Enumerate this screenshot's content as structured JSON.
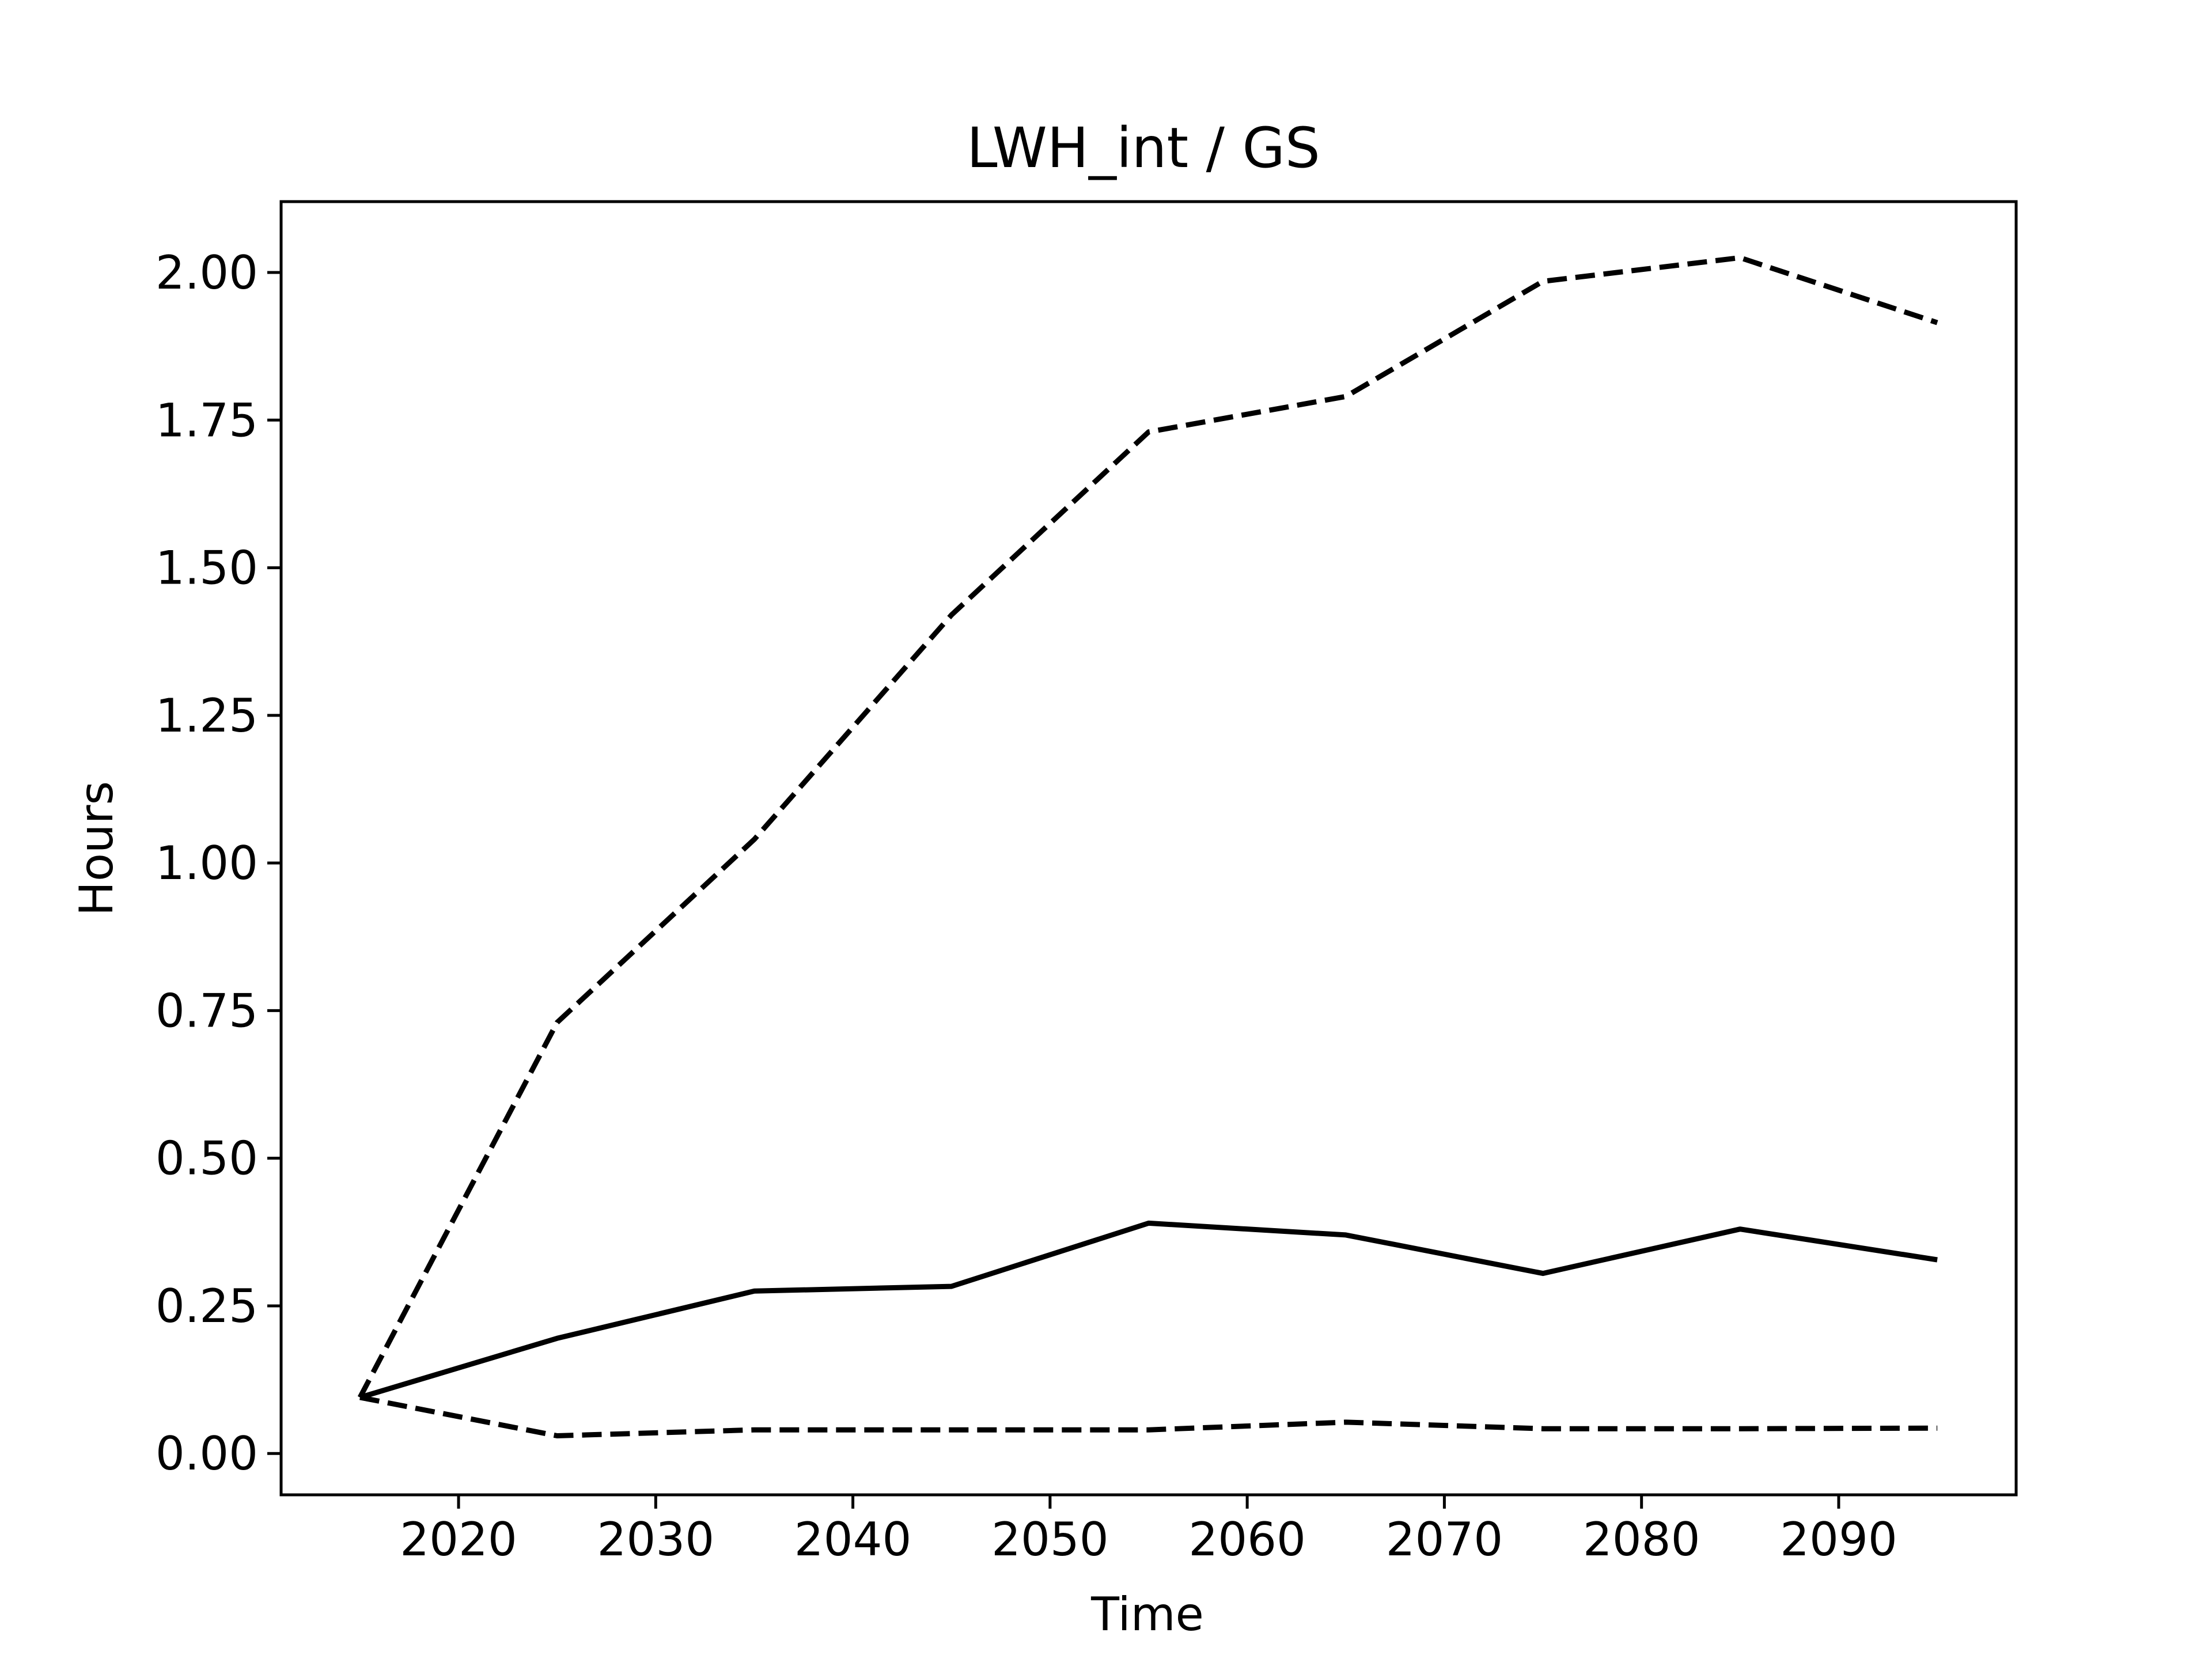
{
  "chart_data": {
    "type": "line",
    "title": "LWH_int / GS",
    "xlabel": "Time",
    "ylabel": "Hours",
    "xlim": [
      2011,
      2099
    ],
    "ylim": [
      -0.07,
      2.12
    ],
    "xticks": [
      2020,
      2030,
      2040,
      2050,
      2060,
      2070,
      2080,
      2090
    ],
    "yticks": [
      0.0,
      0.25,
      0.5,
      0.75,
      1.0,
      1.25,
      1.5,
      1.75,
      2.0
    ],
    "ytick_labels": [
      "0.00",
      "0.25",
      "0.50",
      "0.75",
      "1.00",
      "1.25",
      "1.50",
      "1.75",
      "2.00"
    ],
    "grid": false,
    "x": [
      2015,
      2025,
      2035,
      2045,
      2055,
      2065,
      2075,
      2085,
      2095
    ],
    "series": [
      {
        "style": "solid",
        "color": "#000000",
        "values": [
          0.095,
          0.195,
          0.275,
          0.283,
          0.39,
          0.37,
          0.305,
          0.38,
          0.328
        ]
      },
      {
        "style": "dashed",
        "color": "#000000",
        "values": [
          0.095,
          0.73,
          1.04,
          1.42,
          1.73,
          1.79,
          1.985,
          2.025,
          1.915
        ]
      },
      {
        "style": "dashed",
        "color": "#000000",
        "values": [
          0.095,
          0.03,
          0.04,
          0.04,
          0.04,
          0.053,
          0.042,
          0.042,
          0.043
        ]
      }
    ]
  }
}
